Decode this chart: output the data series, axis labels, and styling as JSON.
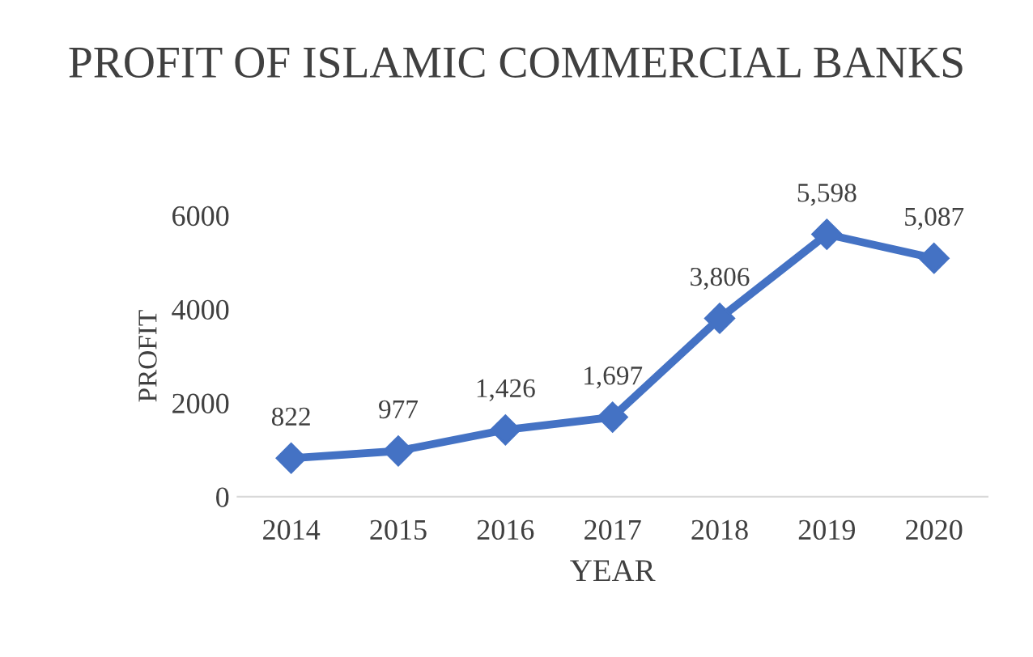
{
  "chart_data": {
    "type": "line",
    "title": "PROFIT OF ISLAMIC COMMERCIAL BANKS",
    "xlabel": "YEAR",
    "ylabel": "PROFIT",
    "categories": [
      "2014",
      "2015",
      "2016",
      "2017",
      "2018",
      "2019",
      "2020"
    ],
    "series": [
      {
        "color": "#4472c4",
        "values": [
          822,
          977,
          1426,
          1697,
          3806,
          5598,
          5087
        ],
        "value_labels": [
          "822",
          "977",
          "1,426",
          "1,697",
          "3,806",
          "5,598",
          "5,087"
        ]
      }
    ],
    "ylim": [
      0,
      6000
    ],
    "yticks": [
      0,
      2000,
      4000,
      6000
    ],
    "grid": false,
    "legend": false,
    "marker": "diamond",
    "line_style": "solid"
  }
}
